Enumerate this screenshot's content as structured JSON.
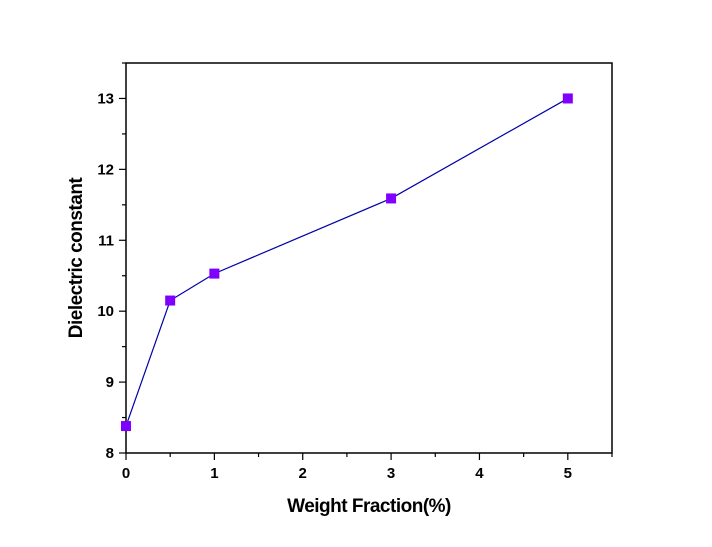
{
  "chart_data": {
    "type": "line",
    "title": "",
    "xlabel": "Weight Fraction(%)",
    "ylabel": "Dielectric constant",
    "xlim": [
      0,
      5.5
    ],
    "ylim": [
      8,
      13.5
    ],
    "x_ticks": [
      0,
      1,
      2,
      3,
      4,
      5
    ],
    "y_ticks": [
      8,
      9,
      10,
      11,
      12,
      13
    ],
    "grid": false,
    "series": [
      {
        "x": [
          0,
          0.5,
          1,
          3,
          5
        ],
        "y": [
          8.38,
          10.15,
          10.53,
          11.59,
          13.0
        ],
        "marker": "square",
        "line_color": "#0000a8",
        "marker_color": "#8000ff"
      }
    ]
  }
}
